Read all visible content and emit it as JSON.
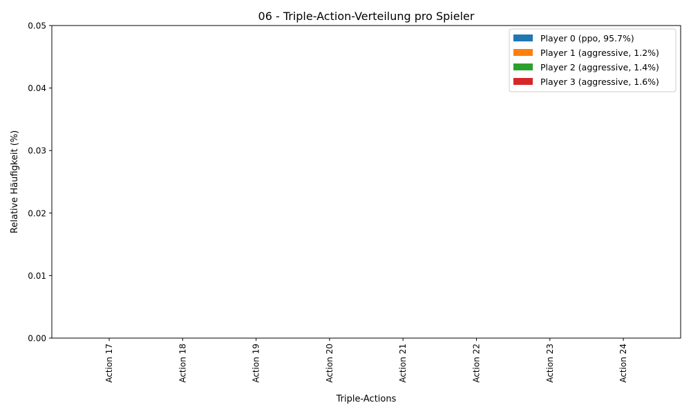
{
  "chart_data": {
    "type": "bar",
    "title": "06 - Triple-Action-Verteilung pro Spieler",
    "xlabel": "Triple-Actions",
    "ylabel": "Relative Häufigkeit (%)",
    "categories": [
      "Action 17",
      "Action 18",
      "Action 19",
      "Action 20",
      "Action 21",
      "Action 22",
      "Action 23",
      "Action 24"
    ],
    "ylim": [
      0,
      0.05
    ],
    "yticks": [
      "0.00",
      "0.01",
      "0.02",
      "0.03",
      "0.04",
      "0.05"
    ],
    "ytick_values": [
      0,
      0.01,
      0.02,
      0.03,
      0.04,
      0.05
    ],
    "grid": false,
    "legend_position": "top-right",
    "series": [
      {
        "name": "Player 0 (ppo, 95.7%)",
        "color": "#1f77b4",
        "values": [
          0,
          0,
          0,
          0,
          0,
          0,
          0,
          0
        ]
      },
      {
        "name": "Player 1 (aggressive, 1.2%)",
        "color": "#ff7f0e",
        "values": [
          0,
          0,
          0,
          0,
          0,
          0,
          0,
          0
        ]
      },
      {
        "name": "Player 2 (aggressive, 1.4%)",
        "color": "#2ca02c",
        "values": [
          0,
          0,
          0,
          0,
          0,
          0,
          0,
          0
        ]
      },
      {
        "name": "Player 3 (aggressive, 1.6%)",
        "color": "#d62728",
        "values": [
          0,
          0,
          0,
          0,
          0,
          0,
          0,
          0
        ]
      }
    ]
  }
}
